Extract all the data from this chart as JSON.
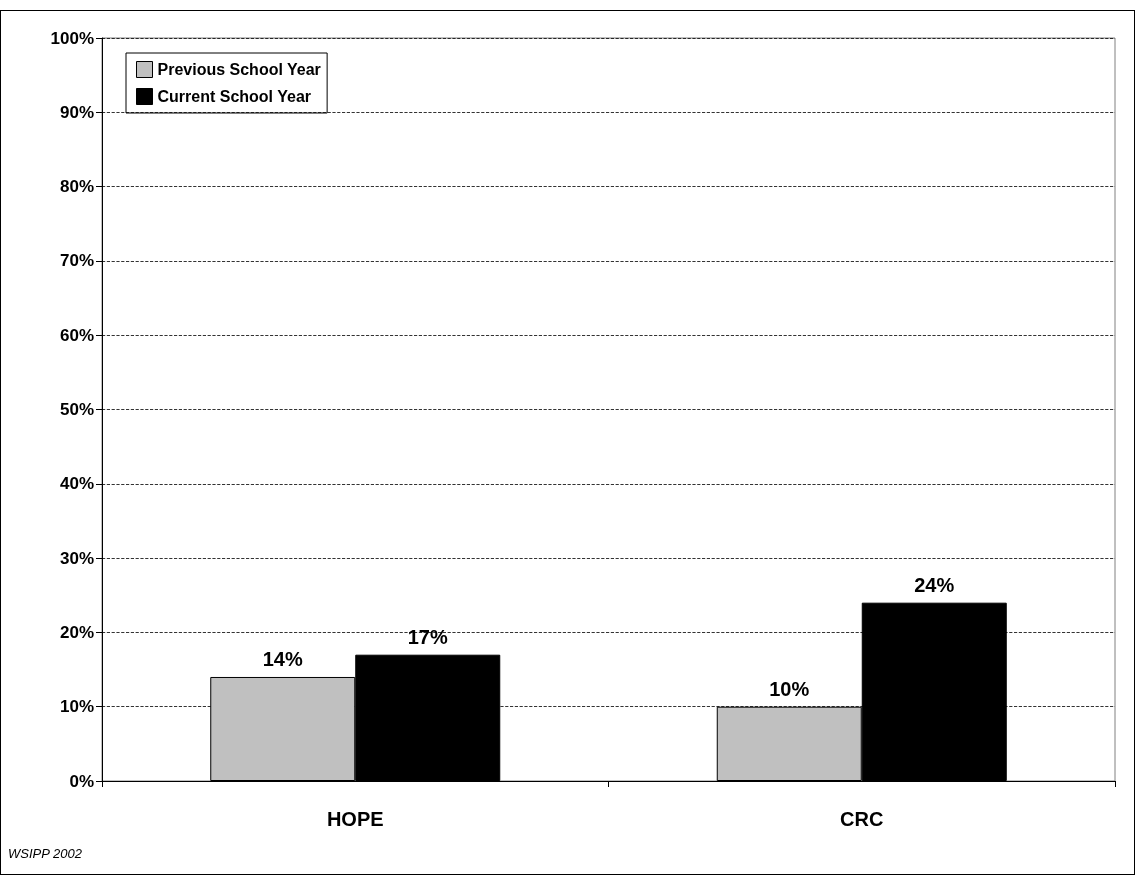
{
  "chart_data": {
    "type": "bar",
    "categories": [
      "HOPE",
      "CRC"
    ],
    "series": [
      {
        "name": "Previous School Year",
        "color": "#c0c0c0",
        "values": [
          14,
          10
        ],
        "value_labels": [
          "14%",
          "10%"
        ]
      },
      {
        "name": "Current School Year",
        "color": "#000000",
        "values": [
          17,
          24
        ],
        "value_labels": [
          "17%",
          "24%"
        ]
      }
    ],
    "ylim": [
      0,
      100
    ],
    "yticks": [
      {
        "value": 0,
        "label": "0%"
      },
      {
        "value": 10,
        "label": "10%"
      },
      {
        "value": 20,
        "label": "20%"
      },
      {
        "value": 30,
        "label": "30%"
      },
      {
        "value": 40,
        "label": "40%"
      },
      {
        "value": 50,
        "label": "50%"
      },
      {
        "value": 60,
        "label": "60%"
      },
      {
        "value": 70,
        "label": "70%"
      },
      {
        "value": 80,
        "label": "80%"
      },
      {
        "value": 90,
        "label": "90%"
      },
      {
        "value": 100,
        "label": "100%"
      }
    ],
    "grid": "y",
    "line_style": "dashed",
    "legend": "top left",
    "annotations": [
      "WSIPP 2002"
    ]
  }
}
